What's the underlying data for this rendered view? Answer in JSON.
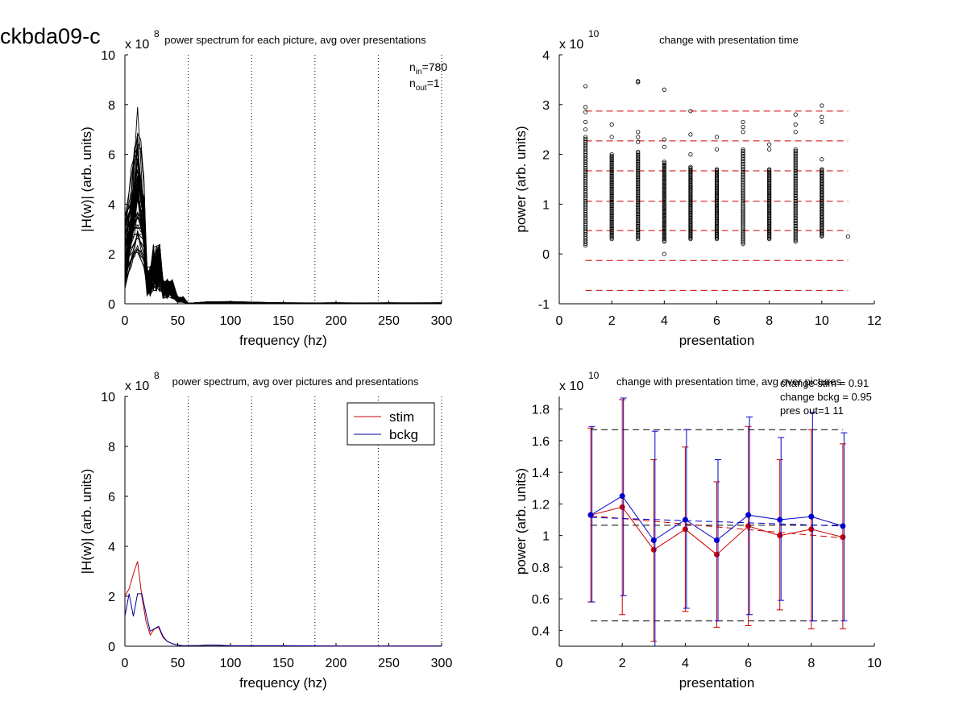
{
  "figure_label": "ckbda09-c",
  "chart_data": [
    {
      "type": "line",
      "title": "power spectrum for each picture, avg over presentations",
      "xlabel": "frequency (hz)",
      "ylabel": "|H(w)| (arb. units)",
      "exponent_base": "x 10",
      "exponent_power": "8",
      "xlim": [
        0,
        300
      ],
      "ylim": [
        0,
        10
      ],
      "xticks": [
        "0",
        "50",
        "100",
        "150",
        "200",
        "250",
        "300"
      ],
      "yticks": [
        "0",
        "2",
        "4",
        "6",
        "8",
        "10"
      ],
      "vlines_dotted": [
        60,
        120,
        180,
        240,
        300
      ],
      "annotation_lines": [
        {
          "main": "n",
          "sub": "in",
          "suffix": "=780"
        },
        {
          "main": "n",
          "sub": "out",
          "suffix": "=1"
        }
      ],
      "line_color": "#000000",
      "x": [
        0,
        3,
        6,
        9,
        12,
        15,
        18,
        21,
        24,
        27,
        30,
        33,
        36,
        40,
        45,
        50,
        55,
        60,
        80,
        100,
        150,
        200,
        250,
        300
      ],
      "series_envelope": {
        "peak_max": 8.25,
        "peak_freq": 12
      }
    },
    {
      "type": "scatter",
      "title": "change with presentation time",
      "xlabel": "presentation",
      "ylabel": "power (arb. units)",
      "exponent_base": "x 10",
      "exponent_power": "10",
      "xlim": [
        0,
        12
      ],
      "ylim": [
        -1,
        4
      ],
      "xticks": [
        "0",
        "2",
        "4",
        "6",
        "8",
        "10",
        "12"
      ],
      "yticks": [
        "-1",
        "0",
        "1",
        "2",
        "3",
        "4"
      ],
      "hlines_dashed_red": [
        2.87,
        2.27,
        1.67,
        1.06,
        0.47,
        -0.13,
        -0.73
      ],
      "hline_xrange": [
        1,
        11
      ],
      "marker": "open-circle",
      "columns": [
        {
          "x": 1,
          "min": 0.17,
          "max": 2.35,
          "outliers": [
            3.37,
            2.95,
            2.85,
            2.65,
            2.5
          ]
        },
        {
          "x": 2,
          "min": 0.3,
          "max": 2.0,
          "outliers": [
            2.6,
            2.35
          ]
        },
        {
          "x": 3,
          "min": 0.3,
          "max": 2.05,
          "outliers": [
            3.45,
            3.47,
            2.45,
            2.35,
            2.25
          ]
        },
        {
          "x": 4,
          "min": 0.25,
          "max": 1.85,
          "outliers": [
            3.3,
            2.3,
            2.15,
            0.0
          ]
        },
        {
          "x": 5,
          "min": 0.3,
          "max": 1.75,
          "outliers": [
            2.87,
            2.4,
            2.0
          ]
        },
        {
          "x": 6,
          "min": 0.3,
          "max": 1.7,
          "outliers": [
            2.35,
            2.1
          ]
        },
        {
          "x": 7,
          "min": 0.2,
          "max": 2.1,
          "outliers": [
            2.65,
            2.55,
            2.45
          ]
        },
        {
          "x": 8,
          "min": 0.3,
          "max": 1.7,
          "outliers": [
            2.2,
            2.1
          ]
        },
        {
          "x": 9,
          "min": 0.25,
          "max": 2.1,
          "outliers": [
            2.8,
            2.6,
            2.45
          ]
        },
        {
          "x": 10,
          "min": 0.35,
          "max": 1.7,
          "outliers": [
            2.98,
            2.75,
            2.65,
            1.9
          ]
        },
        {
          "x": 11,
          "min": 0.35,
          "max": 0.35,
          "outliers": []
        }
      ]
    },
    {
      "type": "line",
      "title": "power spectrum, avg over pictures and presentations",
      "xlabel": "frequency (hz)",
      "ylabel": "|H(w)| (arb. units)",
      "exponent_base": "x 10",
      "exponent_power": "8",
      "xlim": [
        0,
        300
      ],
      "ylim": [
        0,
        10
      ],
      "xticks": [
        "0",
        "50",
        "100",
        "150",
        "200",
        "250",
        "300"
      ],
      "yticks": [
        "0",
        "2",
        "4",
        "6",
        "8",
        "10"
      ],
      "vlines_dotted": [
        60,
        120,
        180,
        240,
        300
      ],
      "legend": "top-right",
      "x": [
        0,
        4,
        8,
        12,
        16,
        20,
        24,
        28,
        32,
        36,
        40,
        45,
        50,
        55,
        60,
        70,
        80,
        90,
        100,
        150,
        200,
        250,
        300
      ],
      "series": [
        {
          "name": "stim",
          "color": "#cc0000",
          "values": [
            2.0,
            2.3,
            2.9,
            3.4,
            2.0,
            1.0,
            0.45,
            0.7,
            0.75,
            0.35,
            0.2,
            0.1,
            0.05,
            0.02,
            0.02,
            0.03,
            0.05,
            0.04,
            0.02,
            0.02,
            0.01,
            0.01,
            0.01
          ]
        },
        {
          "name": "bckg",
          "color": "#000099",
          "values": [
            1.2,
            2.1,
            1.2,
            2.1,
            2.1,
            1.3,
            0.6,
            0.7,
            0.8,
            0.4,
            0.2,
            0.1,
            0.05,
            0.02,
            0.02,
            0.03,
            0.05,
            0.04,
            0.02,
            0.02,
            0.01,
            0.01,
            0.01
          ]
        }
      ]
    },
    {
      "type": "line",
      "title": "change with presentation time, avg over pictures",
      "xlabel": "presentation",
      "ylabel": "power (arb. units)",
      "exponent_base": "x 10",
      "exponent_power": "10",
      "xlim": [
        0,
        10
      ],
      "ylim": [
        0.3,
        1.88
      ],
      "xticks": [
        "0",
        "2",
        "4",
        "6",
        "8",
        "10"
      ],
      "yticks": [
        "0.4",
        "0.6",
        "0.8",
        "1",
        "1.2",
        "1.4",
        "1.6",
        "1.8"
      ],
      "annotations": [
        "change stim = 0.91",
        "change bckg = 0.95",
        "pres out=1 11"
      ],
      "hlines_dashed_black": [
        1.67,
        1.065,
        0.46
      ],
      "hline_xrange": [
        1,
        9
      ],
      "x": [
        1,
        2,
        3,
        4,
        5,
        6,
        7,
        8,
        9
      ],
      "series": [
        {
          "name": "stim",
          "color": "#cc0000",
          "values": [
            1.13,
            1.18,
            0.91,
            1.04,
            0.88,
            1.06,
            1.0,
            1.04,
            0.99
          ],
          "err_low": [
            0.58,
            0.5,
            0.33,
            0.52,
            0.42,
            0.43,
            0.53,
            0.41,
            0.41
          ],
          "err_high": [
            1.68,
            1.86,
            1.48,
            1.56,
            1.34,
            1.69,
            1.48,
            1.67,
            1.58
          ],
          "trend": [
            1.125,
            0.985
          ]
        },
        {
          "name": "bckg",
          "color": "#0000cc",
          "values": [
            1.13,
            1.25,
            0.97,
            1.1,
            0.97,
            1.13,
            1.1,
            1.12,
            1.06
          ],
          "err_low": [
            0.58,
            0.62,
            0.28,
            0.54,
            0.46,
            0.5,
            0.59,
            0.46,
            0.46
          ],
          "err_high": [
            1.69,
            1.87,
            1.66,
            1.67,
            1.48,
            1.75,
            1.62,
            1.78,
            1.65
          ],
          "trend": [
            1.115,
            1.06
          ]
        }
      ]
    }
  ]
}
